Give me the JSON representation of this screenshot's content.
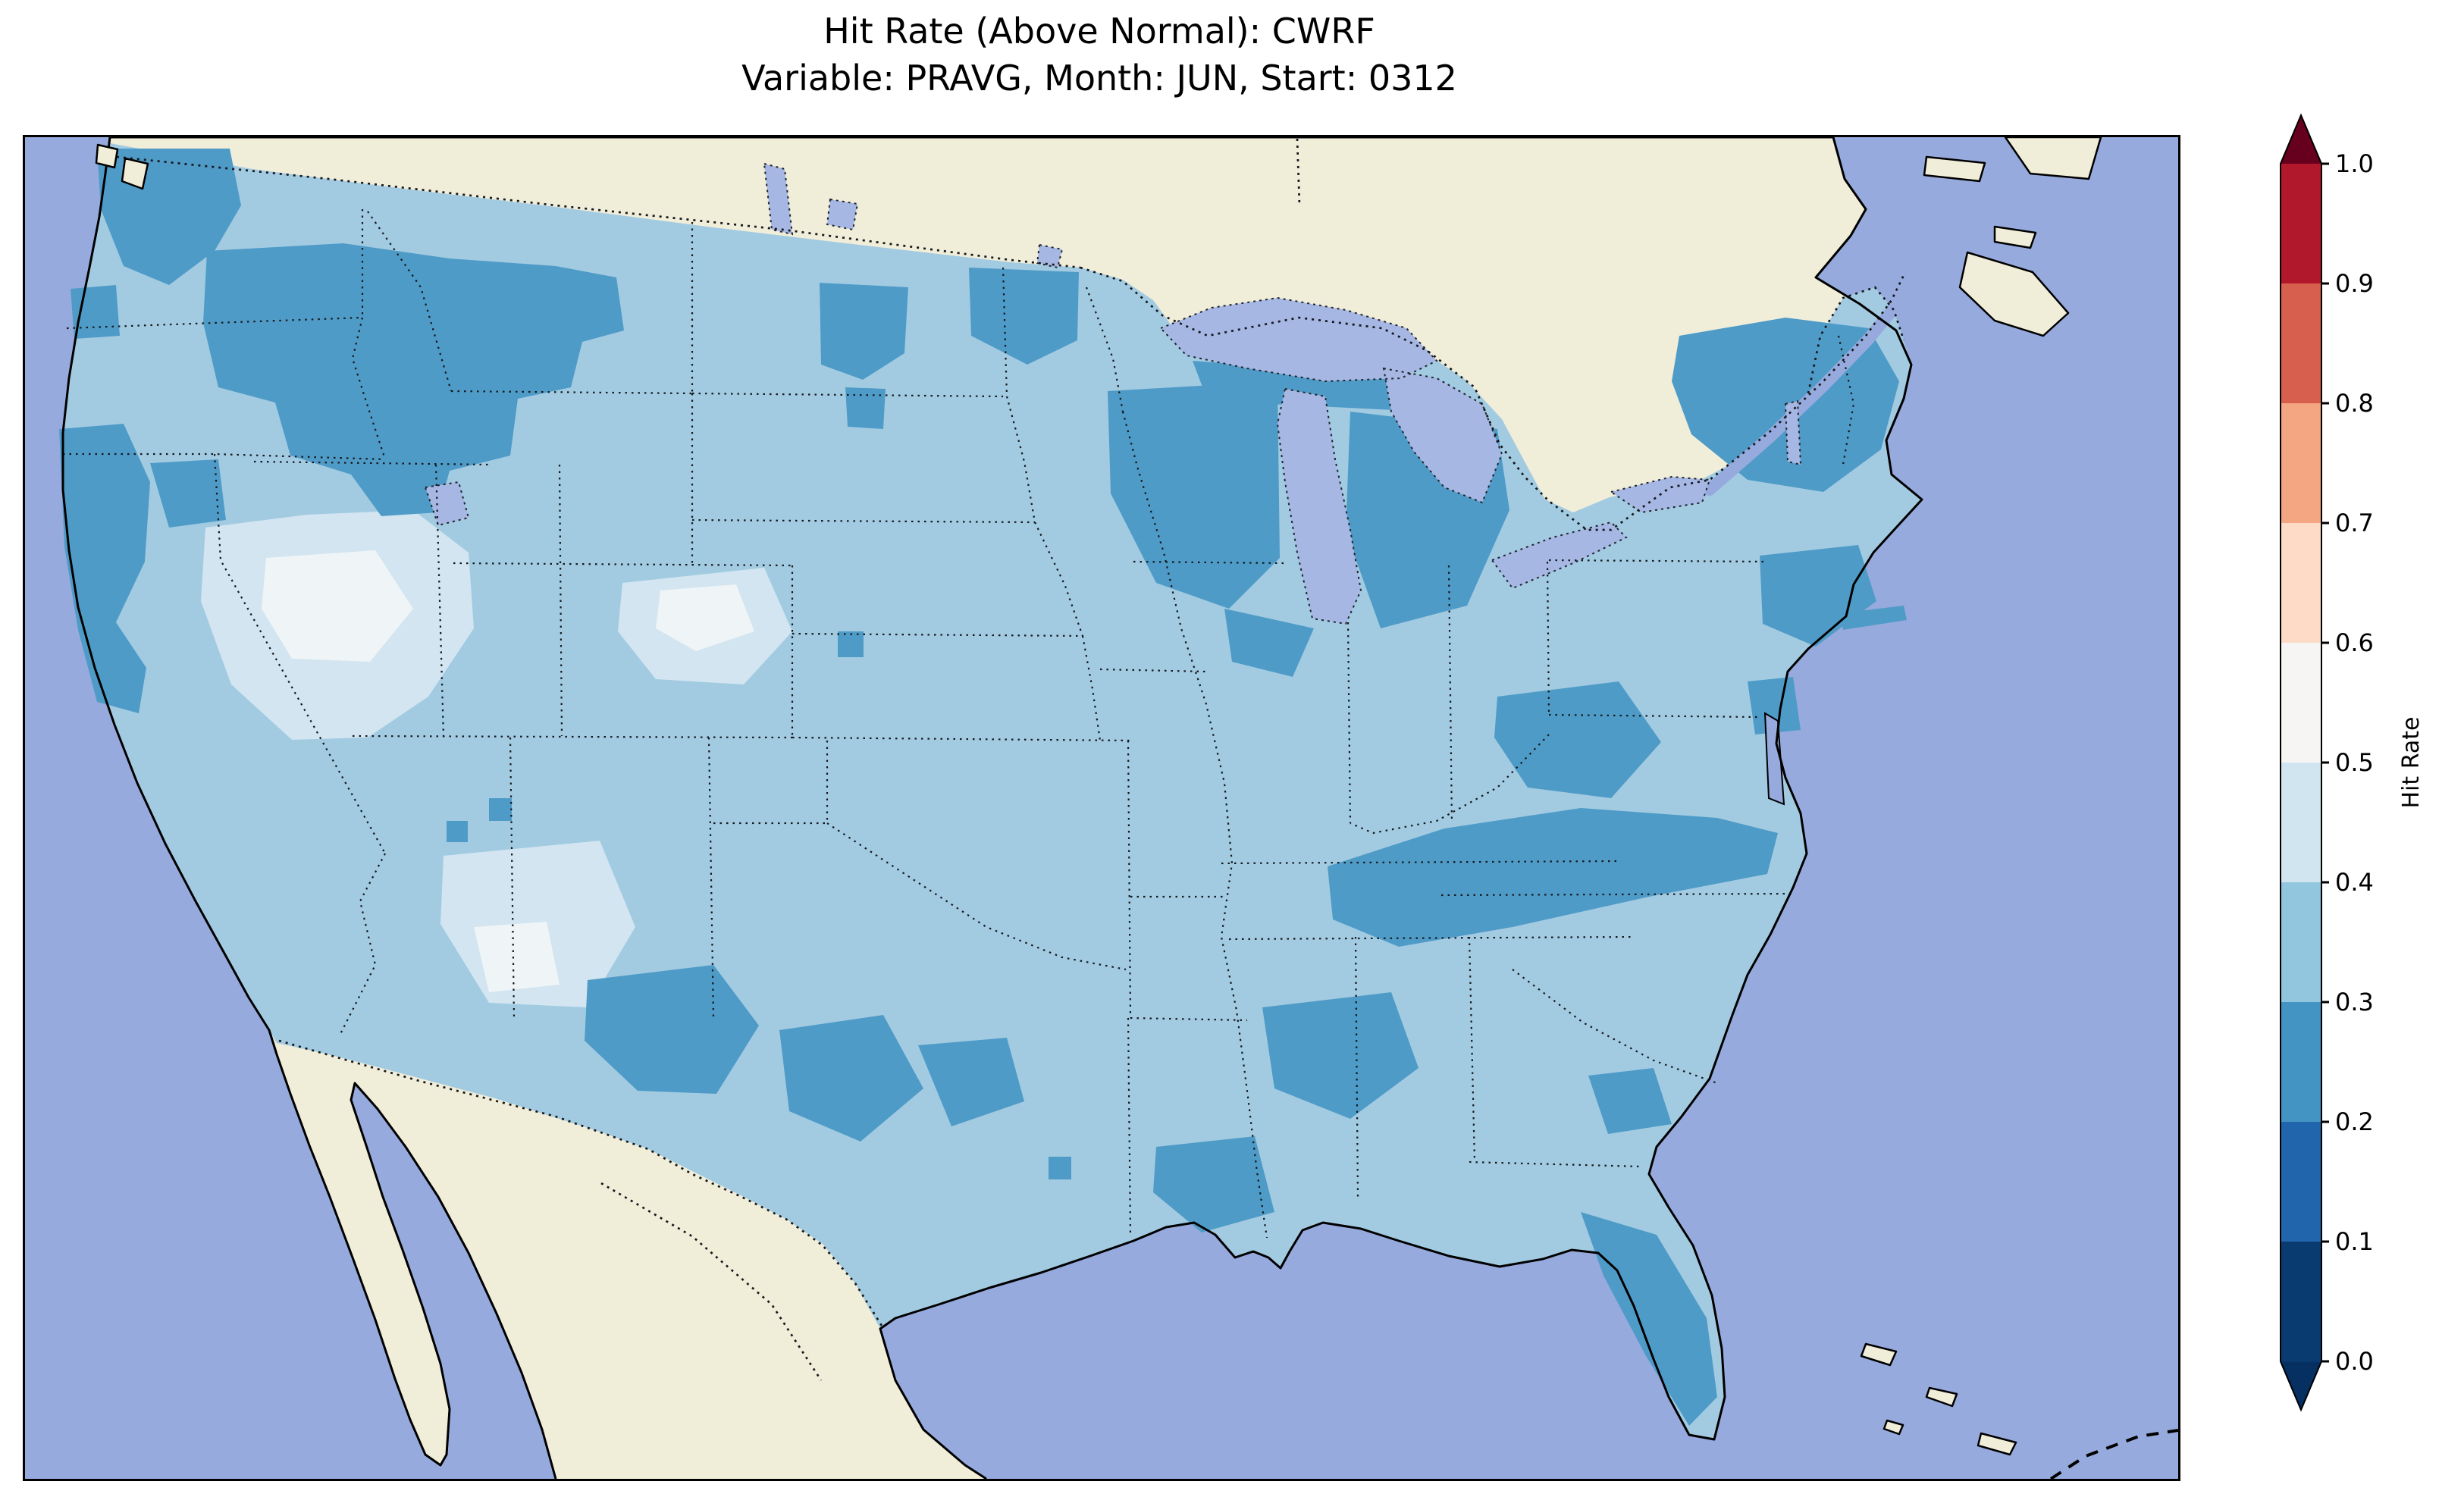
{
  "title": {
    "line1": "Hit Rate (Above Normal): CWRF",
    "line2": "Variable: PRAVG, Month: JUN, Start: 0312"
  },
  "colorbar": {
    "label": "Hit Rate",
    "ticks": [
      "1.0",
      "0.9",
      "0.8",
      "0.7",
      "0.6",
      "0.5",
      "0.4",
      "0.3",
      "0.2",
      "0.1",
      "0.0"
    ],
    "segments_top_to_bottom": [
      "#b2182b",
      "#d6604d",
      "#f4a582",
      "#fddbc7",
      "#f7f5f3",
      "#d1e5f0",
      "#92c5de",
      "#4393c3",
      "#2166ac",
      "#0a3b70"
    ],
    "over_color": "#67001f",
    "under_color": "#053061"
  },
  "colors": {
    "ocean": "#96aadd",
    "land": "#f0edd9",
    "lake": "#a6b7e4",
    "hit_rate_03_04": "#a2cbe2",
    "hit_rate_02_03": "#4f9bc7",
    "hit_rate_04_05": "#d2e5f0",
    "hit_rate_05_06": "#eff4f6",
    "figure_background": "#ffffff",
    "coastline": "#000000"
  },
  "chart_data": {
    "type": "heatmap",
    "title": "Hit Rate (Above Normal): CWRF",
    "subtitle": "Variable: PRAVG, Month: JUN, Start: 0312",
    "geography": "Continental United States with Canada, Mexico, Great Lakes, Gulf of Mexico and Atlantic/Pacific oceans; dotted state and national borders",
    "colorbar": {
      "label": "Hit Rate",
      "levels": [
        0.0,
        0.1,
        0.2,
        0.3,
        0.4,
        0.5,
        0.6,
        0.7,
        0.8,
        0.9,
        1.0
      ],
      "colormap": "RdBu_r (discrete, 0.1 bins)",
      "extend": "both",
      "legend_position": "right"
    },
    "value_range_shown_on_map": [
      0.2,
      0.6
    ],
    "regional_hit_rates": [
      {
        "region": "Most of the contiguous US (base field)",
        "hit_rate": "0.3-0.4"
      },
      {
        "region": "Western Washington / Pacific Northwest coast",
        "hit_rate": "0.2-0.3"
      },
      {
        "region": "Eastern Oregon, Idaho, western Montana, northern Utah",
        "hit_rate": "0.2-0.3"
      },
      {
        "region": "Northern California coast and Bay Area",
        "hit_rate": "0.2-0.3"
      },
      {
        "region": "Central North Dakota and northern Minnesota",
        "hit_rate": "0.2-0.3"
      },
      {
        "region": "Wisconsin, Michigan and Great Lakes shores",
        "hit_rate": "0.2-0.3"
      },
      {
        "region": "New England, upstate New York, NYC metro / Long Island",
        "hit_rate": "0.2-0.3"
      },
      {
        "region": "Eastern Ohio / West Virginia",
        "hit_rate": "0.2-0.3"
      },
      {
        "region": "Tennessee-Kentucky-Virginia Appalachian band",
        "hit_rate": "0.2-0.3"
      },
      {
        "region": "West and central Texas patches",
        "hit_rate": "0.2-0.3"
      },
      {
        "region": "Central Mississippi / Alabama",
        "hit_rate": "0.2-0.3"
      },
      {
        "region": "Louisiana delta",
        "hit_rate": "0.2-0.3"
      },
      {
        "region": "Florida peninsula",
        "hit_rate": "0.2-0.3"
      },
      {
        "region": "Georgia coast patch",
        "hit_rate": "0.2-0.3"
      },
      {
        "region": "Nevada / western Utah basin",
        "hit_rate": "0.4-0.5 with 0.5-0.6 core"
      },
      {
        "region": "Colorado-Kansas border area",
        "hit_rate": "0.4-0.5 with 0.5-0.6 core"
      },
      {
        "region": "Central New Mexico",
        "hit_rate": "0.4-0.5 with 0.5-0.6 core"
      }
    ]
  }
}
